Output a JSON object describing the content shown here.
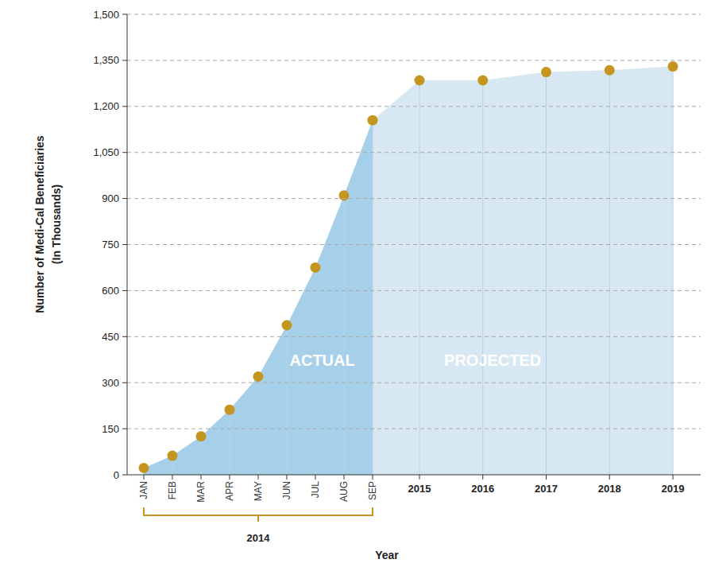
{
  "chart_data": {
    "type": "area",
    "x_label": "Year",
    "y_label": [
      "Number of Medi-Cal Beneficiaries",
      "(In Thousands)"
    ],
    "categories": [
      "JAN",
      "FEB",
      "MAR",
      "APR",
      "MAY",
      "JUN",
      "JUL",
      "AUG",
      "SEP",
      "2015",
      "2016",
      "2017",
      "2018",
      "2019"
    ],
    "category_groups": [
      {
        "label": "2014",
        "start": "JAN",
        "end": "SEP"
      }
    ],
    "series": [
      {
        "name": "ACTUAL",
        "color": "#a6d0ea",
        "marker": "circle",
        "values": [
          22,
          62,
          125,
          212,
          320,
          487,
          675,
          910,
          1155,
          null,
          null,
          null,
          null,
          null
        ]
      },
      {
        "name": "PROJECTED",
        "color": "#d8e8f2",
        "marker": "circle",
        "values": [
          null,
          null,
          null,
          null,
          null,
          null,
          null,
          null,
          null,
          1285,
          1285,
          1312,
          1318,
          1330
        ]
      }
    ],
    "ylim": [
      0,
      1500
    ],
    "yticks": [
      0,
      150,
      300,
      450,
      600,
      750,
      900,
      {
        "value": 1050,
        "label": "1,050"
      },
      {
        "value": 1200,
        "label": "1,200"
      },
      {
        "value": 1350,
        "label": "1,350"
      },
      {
        "value": 1500,
        "label": "1,500"
      }
    ],
    "grid": true
  }
}
